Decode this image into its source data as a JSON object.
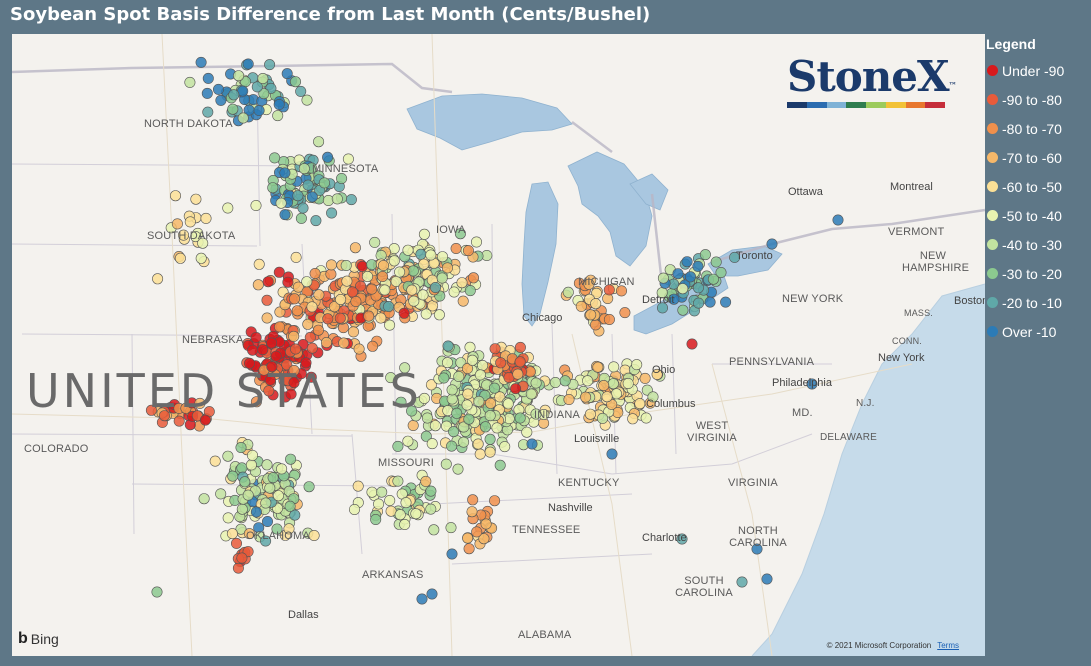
{
  "title": "Soybean Spot Basis Difference from Last Month (Cents/Bushel)",
  "legend": {
    "title": "Legend",
    "items": [
      {
        "label": "Under -90",
        "color": "#d7191c"
      },
      {
        "label": "-90 to -80",
        "color": "#e85b3a"
      },
      {
        "label": "-80 to -70",
        "color": "#f0904c"
      },
      {
        "label": "-70 to -60",
        "color": "#f6b869"
      },
      {
        "label": "-60 to -50",
        "color": "#fbe096"
      },
      {
        "label": "-50 to -40",
        "color": "#e8f3b0"
      },
      {
        "label": "-40 to -30",
        "color": "#c2e3a0"
      },
      {
        "label": "-30 to -20",
        "color": "#8cc98f"
      },
      {
        "label": "-20 to -10",
        "color": "#5fa8a8"
      },
      {
        "label": "Over -10",
        "color": "#2c7bb6"
      }
    ]
  },
  "logo": {
    "text": "StoneX",
    "tm": "™",
    "bar_colors": [
      "#1b3a6b",
      "#2b6cb0",
      "#7fb2d6",
      "#2f7d4f",
      "#9ccb5c",
      "#f2c237",
      "#e8772e",
      "#c62e3a"
    ]
  },
  "map": {
    "country_label": "UNITED STATES",
    "state_labels": [
      "NORTH DAKOTA",
      "MINNESOTA",
      "SOUTH DAKOTA",
      "NEBRASKA",
      "COLORADO",
      "IOWA",
      "MISSOURI",
      "OKLAHOMA",
      "ARKANSAS",
      "MICHIGAN",
      "INDIANA",
      "KENTUCKY",
      "TENNESSEE",
      "WEST VIRGINIA",
      "VIRGINIA",
      "PENNSYLVANIA",
      "NEW YORK",
      "NORTH CAROLINA",
      "SOUTH CAROLINA",
      "ALABAMA",
      "VERMONT",
      "NEW HAMPSHIRE",
      "MASS.",
      "CONN.",
      "N.J.",
      "DELAWARE",
      "MD."
    ],
    "city_labels": [
      "Chicago",
      "Detroit",
      "Toronto",
      "Ottawa",
      "Montreal",
      "Boston",
      "New York",
      "Philadelphia",
      "Columbus",
      "Louisville",
      "Nashville",
      "Charlotte",
      "Dallas",
      "Ohio"
    ],
    "provider": "Bing",
    "copyright": "© 2021 Microsoft Corporation",
    "terms": "Terms"
  }
}
